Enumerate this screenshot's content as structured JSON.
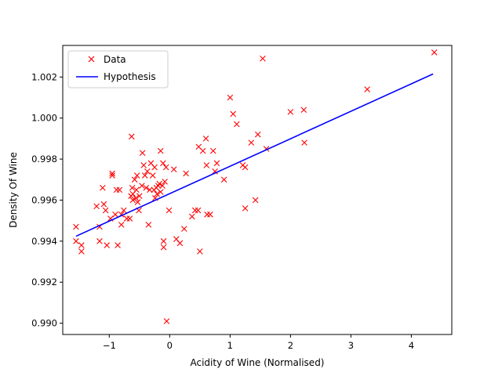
{
  "chart_data": {
    "type": "scatter",
    "title": "",
    "xlabel": "Acidity of Wine (Normalised)",
    "ylabel": "Density Of Wine",
    "xlim": [
      -1.77,
      4.67
    ],
    "ylim": [
      0.98945,
      1.00354
    ],
    "xticks": [
      -1,
      0,
      1,
      2,
      3,
      4
    ],
    "xtick_labels": [
      "−1",
      "0",
      "1",
      "2",
      "3",
      "4"
    ],
    "yticks": [
      0.99,
      0.992,
      0.994,
      0.996,
      0.998,
      1.0,
      1.002
    ],
    "ytick_labels": [
      "0.990",
      "0.992",
      "0.994",
      "0.996",
      "0.998",
      "1.000",
      "1.002"
    ],
    "grid": false,
    "legend_position": "top-left",
    "series": [
      {
        "name": "Data",
        "kind": "marker-x",
        "color": "#ff0000",
        "points": [
          [
            -1.55,
            0.9947
          ],
          [
            -1.55,
            0.994
          ],
          [
            -1.46,
            0.9938
          ],
          [
            -1.46,
            0.9935
          ],
          [
            -1.21,
            0.9957
          ],
          [
            -1.16,
            0.9947
          ],
          [
            -1.16,
            0.994
          ],
          [
            -1.11,
            0.9966
          ],
          [
            -1.09,
            0.9958
          ],
          [
            -1.06,
            0.9955
          ],
          [
            -1.04,
            0.9938
          ],
          [
            -0.98,
            0.9951
          ],
          [
            -0.95,
            0.9973
          ],
          [
            -0.95,
            0.9972
          ],
          [
            -0.9,
            0.9953
          ],
          [
            -0.88,
            0.9965
          ],
          [
            -0.86,
            0.9938
          ],
          [
            -0.83,
            0.9965
          ],
          [
            -0.8,
            0.9948
          ],
          [
            -0.8,
            0.9953
          ],
          [
            -0.76,
            0.9955
          ],
          [
            -0.71,
            0.9951
          ],
          [
            -0.66,
            0.9951
          ],
          [
            -0.64,
            0.9962
          ],
          [
            -0.63,
            0.9991
          ],
          [
            -0.62,
            0.9966
          ],
          [
            -0.61,
            0.996
          ],
          [
            -0.61,
            0.9963
          ],
          [
            -0.58,
            0.997
          ],
          [
            -0.56,
            0.9961
          ],
          [
            -0.55,
            0.9965
          ],
          [
            -0.54,
            0.9972
          ],
          [
            -0.53,
            0.9959
          ],
          [
            -0.51,
            0.9955
          ],
          [
            -0.5,
            0.9962
          ],
          [
            -0.46,
            0.9967
          ],
          [
            -0.45,
            0.9983
          ],
          [
            -0.43,
            0.9977
          ],
          [
            -0.41,
            0.9972
          ],
          [
            -0.39,
            0.9966
          ],
          [
            -0.37,
            0.9974
          ],
          [
            -0.35,
            0.9948
          ],
          [
            -0.33,
            0.9965
          ],
          [
            -0.31,
            0.9978
          ],
          [
            -0.28,
            0.9972
          ],
          [
            -0.26,
            0.9965
          ],
          [
            -0.25,
            0.9976
          ],
          [
            -0.24,
            0.9961
          ],
          [
            -0.22,
            0.9966
          ],
          [
            -0.21,
            0.9963
          ],
          [
            -0.19,
            0.9967
          ],
          [
            -0.17,
            0.9968
          ],
          [
            -0.15,
            0.9984
          ],
          [
            -0.15,
            0.9964
          ],
          [
            -0.12,
            0.9967
          ],
          [
            -0.11,
            0.9978
          ],
          [
            -0.1,
            0.994
          ],
          [
            -0.1,
            0.9937
          ],
          [
            -0.08,
            0.9969
          ],
          [
            -0.06,
            0.9976
          ],
          [
            -0.05,
            0.9901
          ],
          [
            -0.01,
            0.9955
          ],
          [
            0.07,
            0.9975
          ],
          [
            0.11,
            0.9941
          ],
          [
            0.17,
            0.9939
          ],
          [
            0.24,
            0.9946
          ],
          [
            0.27,
            0.9973
          ],
          [
            0.37,
            0.9952
          ],
          [
            0.42,
            0.9955
          ],
          [
            0.47,
            0.9955
          ],
          [
            0.48,
            0.9986
          ],
          [
            0.5,
            0.9935
          ],
          [
            0.55,
            0.9984
          ],
          [
            0.6,
            0.999
          ],
          [
            0.61,
            0.9977
          ],
          [
            0.62,
            0.9953
          ],
          [
            0.67,
            0.9953
          ],
          [
            0.72,
            0.9984
          ],
          [
            0.75,
            0.9974
          ],
          [
            0.78,
            0.9978
          ],
          [
            0.9,
            0.997
          ],
          [
            1.0,
            1.001
          ],
          [
            1.05,
            1.0002
          ],
          [
            1.11,
            0.9997
          ],
          [
            1.21,
            0.9977
          ],
          [
            1.25,
            0.9976
          ],
          [
            1.25,
            0.9956
          ],
          [
            1.35,
            0.9988
          ],
          [
            1.42,
            0.996
          ],
          [
            1.46,
            0.9992
          ],
          [
            1.54,
            1.0029
          ],
          [
            1.6,
            0.9985
          ],
          [
            2.0,
            1.0003
          ],
          [
            2.22,
            1.0004
          ],
          [
            2.23,
            0.9988
          ],
          [
            3.27,
            1.0014
          ],
          [
            4.38,
            1.0032
          ]
        ]
      },
      {
        "name": "Hypothesis",
        "kind": "line",
        "color": "#0000ff",
        "points": [
          [
            -1.55,
            0.99424
          ],
          [
            4.36,
            1.00215
          ]
        ]
      }
    ]
  }
}
